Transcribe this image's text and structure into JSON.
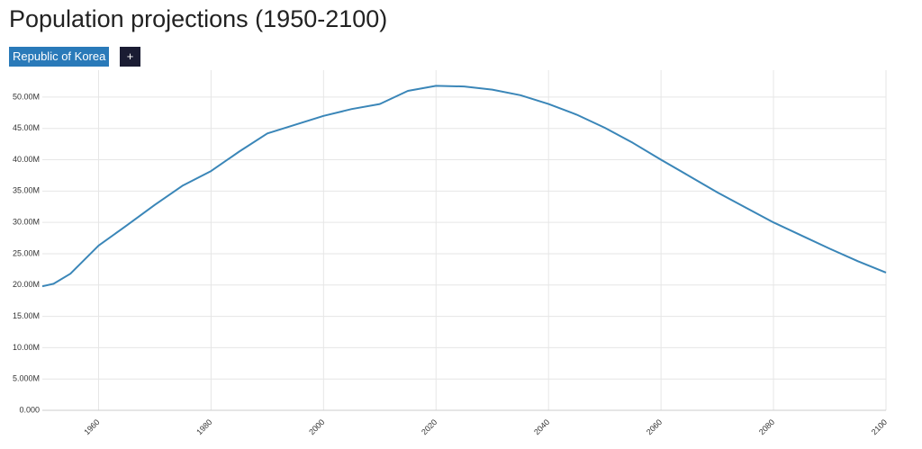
{
  "chart_data": {
    "type": "line",
    "title": "Population projections (1950-2100)",
    "x": [
      1950,
      1952,
      1955,
      1960,
      1965,
      1970,
      1975,
      1980,
      1985,
      1990,
      1995,
      2000,
      2005,
      2010,
      2015,
      2020,
      2025,
      2030,
      2035,
      2040,
      2045,
      2050,
      2055,
      2060,
      2065,
      2070,
      2075,
      2080,
      2085,
      2090,
      2095,
      2100
    ],
    "series": [
      {
        "name": "Republic of Korea",
        "color": "#3a86b8",
        "values": [
          19800000,
          20200000,
          21800000,
          26300000,
          29500000,
          32800000,
          35900000,
          38200000,
          41300000,
          44200000,
          45600000,
          47000000,
          48100000,
          48900000,
          51000000,
          51800000,
          51700000,
          51200000,
          50300000,
          48900000,
          47200000,
          45100000,
          42700000,
          40000000,
          37400000,
          34800000,
          32400000,
          30000000,
          27900000,
          25800000,
          23800000,
          22000000
        ]
      }
    ],
    "xlim": [
      1950,
      2100
    ],
    "xticks": [
      1960,
      1980,
      2000,
      2020,
      2040,
      2060,
      2080,
      2100
    ],
    "ylim": [
      0,
      54300000
    ],
    "yticks": [
      {
        "value": 0,
        "label": "0.000"
      },
      {
        "value": 5000000,
        "label": "5.000M"
      },
      {
        "value": 10000000,
        "label": "10.00M"
      },
      {
        "value": 15000000,
        "label": "15.00M"
      },
      {
        "value": 20000000,
        "label": "20.00M"
      },
      {
        "value": 25000000,
        "label": "25.00M"
      },
      {
        "value": 30000000,
        "label": "30.00M"
      },
      {
        "value": 35000000,
        "label": "35.00M"
      },
      {
        "value": 40000000,
        "label": "40.00M"
      },
      {
        "value": 45000000,
        "label": "45.00M"
      },
      {
        "value": 50000000,
        "label": "50.00M"
      }
    ],
    "grid": true
  },
  "controls": {
    "add_button": "+"
  }
}
